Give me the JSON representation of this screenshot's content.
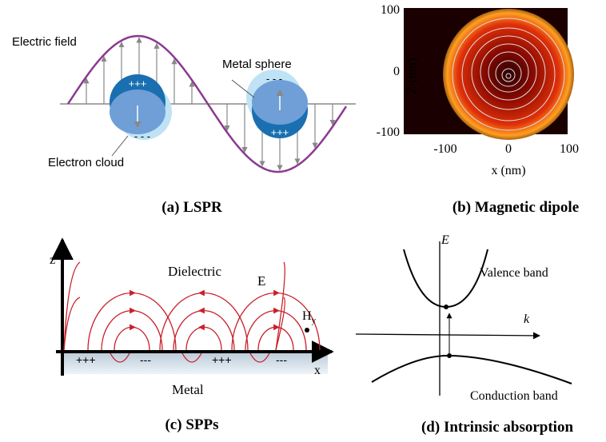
{
  "panels": [
    {
      "caption": "(a)  LSPR",
      "labels": {
        "field": "Electric field",
        "sphere": "Metal sphere",
        "cloud": "Electron cloud",
        "plus": "+++",
        "minus": "- - -"
      }
    },
    {
      "caption": "(b)  Magnetic dipole",
      "y_axis_label": "Z (nm)",
      "x_axis_label": "x (nm)",
      "y_tick_labels": [
        "100",
        "0",
        "-100"
      ],
      "x_tick_labels": [
        "-100",
        "0",
        "100"
      ]
    },
    {
      "caption": "(c)  SPPs",
      "labels": {
        "z": "z",
        "dielectric": "Dielectric",
        "e": "E",
        "h": "H",
        "h_sub": "y",
        "x": "x",
        "metal": "Metal",
        "plus": "+++",
        "minus": "---"
      }
    },
    {
      "caption": "(d)  Intrinsic absorption",
      "labels": {
        "e": "E",
        "k": "k",
        "valence": "Valence band",
        "conduction": "Conduction band"
      }
    }
  ]
}
